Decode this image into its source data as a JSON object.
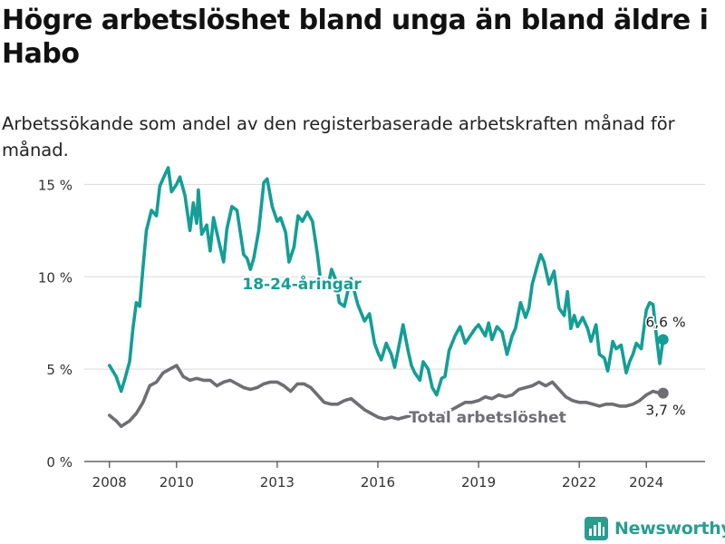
{
  "title": "Högre arbetslöshet bland unga än bland äldre i Habo",
  "subtitle": "Arbetssökande som andel av den registerbaserade arbetskraften månad för månad.",
  "brand": "Newsworthy",
  "chart_data": {
    "type": "line",
    "xlim": [
      2007.25,
      2025.75
    ],
    "ylim": [
      0,
      16
    ],
    "y_ticks": [
      {
        "value": 0,
        "label": "0 %"
      },
      {
        "value": 5,
        "label": "5 %"
      },
      {
        "value": 10,
        "label": "10 %"
      },
      {
        "value": 15,
        "label": "15 %"
      }
    ],
    "x_ticks": [
      {
        "value": 2008,
        "label": "2008"
      },
      {
        "value": 2010,
        "label": "2010"
      },
      {
        "value": 2013,
        "label": "2013"
      },
      {
        "value": 2016,
        "label": "2016"
      },
      {
        "value": 2019,
        "label": "2019"
      },
      {
        "value": 2022,
        "label": "2022"
      },
      {
        "value": 2024,
        "label": "2024"
      }
    ],
    "series": [
      {
        "name": "18-24-åringar",
        "color": "#139e96",
        "end_label": "6,6 %",
        "points": [
          [
            2008.0,
            5.2
          ],
          [
            2008.2,
            4.6
          ],
          [
            2008.35,
            3.8
          ],
          [
            2008.45,
            4.4
          ],
          [
            2008.6,
            5.4
          ],
          [
            2008.7,
            7.2
          ],
          [
            2008.8,
            8.6
          ],
          [
            2008.9,
            8.4
          ],
          [
            2009.0,
            10.5
          ],
          [
            2009.1,
            12.5
          ],
          [
            2009.25,
            13.6
          ],
          [
            2009.4,
            13.3
          ],
          [
            2009.5,
            14.9
          ],
          [
            2009.62,
            15.4
          ],
          [
            2009.75,
            15.9
          ],
          [
            2009.85,
            14.6
          ],
          [
            2010.0,
            15.0
          ],
          [
            2010.1,
            15.4
          ],
          [
            2010.25,
            14.4
          ],
          [
            2010.4,
            12.5
          ],
          [
            2010.5,
            14.0
          ],
          [
            2010.6,
            12.9
          ],
          [
            2010.65,
            14.7
          ],
          [
            2010.75,
            12.3
          ],
          [
            2010.9,
            12.8
          ],
          [
            2011.0,
            11.4
          ],
          [
            2011.1,
            13.2
          ],
          [
            2011.25,
            12.0
          ],
          [
            2011.4,
            10.8
          ],
          [
            2011.5,
            12.6
          ],
          [
            2011.65,
            13.8
          ],
          [
            2011.8,
            13.6
          ],
          [
            2011.9,
            12.4
          ],
          [
            2012.0,
            11.2
          ],
          [
            2012.1,
            11.0
          ],
          [
            2012.2,
            10.4
          ],
          [
            2012.3,
            11.0
          ],
          [
            2012.45,
            12.5
          ],
          [
            2012.6,
            15.1
          ],
          [
            2012.7,
            15.3
          ],
          [
            2012.85,
            13.8
          ],
          [
            2013.0,
            13.0
          ],
          [
            2013.1,
            13.2
          ],
          [
            2013.25,
            12.4
          ],
          [
            2013.35,
            10.8
          ],
          [
            2013.5,
            11.6
          ],
          [
            2013.62,
            13.3
          ],
          [
            2013.75,
            13.0
          ],
          [
            2013.9,
            13.5
          ],
          [
            2014.05,
            13.0
          ],
          [
            2014.2,
            11.2
          ],
          [
            2014.3,
            9.7
          ],
          [
            2014.5,
            9.4
          ],
          [
            2014.62,
            10.4
          ],
          [
            2014.75,
            9.8
          ],
          [
            2014.85,
            8.6
          ],
          [
            2015.0,
            8.4
          ],
          [
            2015.1,
            9.2
          ],
          [
            2015.2,
            9.9
          ],
          [
            2015.4,
            8.5
          ],
          [
            2015.6,
            7.6
          ],
          [
            2015.75,
            8.0
          ],
          [
            2015.9,
            6.4
          ],
          [
            2016.0,
            5.9
          ],
          [
            2016.1,
            5.5
          ],
          [
            2016.25,
            6.4
          ],
          [
            2016.4,
            5.8
          ],
          [
            2016.5,
            5.1
          ],
          [
            2016.6,
            6.0
          ],
          [
            2016.75,
            7.4
          ],
          [
            2016.9,
            6.0
          ],
          [
            2017.0,
            5.2
          ],
          [
            2017.1,
            4.8
          ],
          [
            2017.25,
            4.4
          ],
          [
            2017.35,
            5.4
          ],
          [
            2017.5,
            5.0
          ],
          [
            2017.62,
            4.0
          ],
          [
            2017.75,
            3.6
          ],
          [
            2017.9,
            4.5
          ],
          [
            2018.0,
            4.6
          ],
          [
            2018.12,
            6.0
          ],
          [
            2018.3,
            6.8
          ],
          [
            2018.45,
            7.3
          ],
          [
            2018.6,
            6.4
          ],
          [
            2018.75,
            6.8
          ],
          [
            2018.9,
            7.2
          ],
          [
            2019.0,
            7.4
          ],
          [
            2019.2,
            6.8
          ],
          [
            2019.3,
            7.5
          ],
          [
            2019.4,
            6.6
          ],
          [
            2019.55,
            7.3
          ],
          [
            2019.7,
            7.0
          ],
          [
            2019.85,
            5.8
          ],
          [
            2020.0,
            6.8
          ],
          [
            2020.1,
            7.2
          ],
          [
            2020.25,
            8.6
          ],
          [
            2020.4,
            7.8
          ],
          [
            2020.5,
            8.3
          ],
          [
            2020.6,
            9.6
          ],
          [
            2020.75,
            10.6
          ],
          [
            2020.85,
            11.2
          ],
          [
            2020.95,
            10.8
          ],
          [
            2021.1,
            9.6
          ],
          [
            2021.25,
            10.3
          ],
          [
            2021.4,
            8.3
          ],
          [
            2021.55,
            7.9
          ],
          [
            2021.65,
            9.2
          ],
          [
            2021.75,
            7.2
          ],
          [
            2021.85,
            7.9
          ],
          [
            2021.95,
            7.3
          ],
          [
            2022.1,
            7.8
          ],
          [
            2022.25,
            7.2
          ],
          [
            2022.35,
            6.5
          ],
          [
            2022.5,
            7.4
          ],
          [
            2022.6,
            5.8
          ],
          [
            2022.75,
            5.6
          ],
          [
            2022.85,
            4.9
          ],
          [
            2023.0,
            6.5
          ],
          [
            2023.1,
            6.1
          ],
          [
            2023.25,
            6.3
          ],
          [
            2023.4,
            4.8
          ],
          [
            2023.5,
            5.4
          ],
          [
            2023.6,
            5.8
          ],
          [
            2023.7,
            6.4
          ],
          [
            2023.85,
            6.1
          ],
          [
            2024.0,
            8.2
          ],
          [
            2024.1,
            8.6
          ],
          [
            2024.2,
            8.5
          ],
          [
            2024.3,
            6.8
          ],
          [
            2024.4,
            5.3
          ],
          [
            2024.5,
            6.6
          ]
        ]
      },
      {
        "name": "Total arbetslöshet",
        "color": "#6e6e73",
        "end_label": "3,7 %",
        "points": [
          [
            2008.0,
            2.5
          ],
          [
            2008.2,
            2.2
          ],
          [
            2008.35,
            1.9
          ],
          [
            2008.6,
            2.2
          ],
          [
            2008.8,
            2.6
          ],
          [
            2009.0,
            3.2
          ],
          [
            2009.2,
            4.1
          ],
          [
            2009.4,
            4.3
          ],
          [
            2009.6,
            4.8
          ],
          [
            2009.8,
            5.0
          ],
          [
            2010.0,
            5.2
          ],
          [
            2010.2,
            4.6
          ],
          [
            2010.4,
            4.4
          ],
          [
            2010.6,
            4.5
          ],
          [
            2010.8,
            4.4
          ],
          [
            2011.0,
            4.4
          ],
          [
            2011.2,
            4.1
          ],
          [
            2011.4,
            4.3
          ],
          [
            2011.6,
            4.4
          ],
          [
            2011.8,
            4.2
          ],
          [
            2012.0,
            4.0
          ],
          [
            2012.2,
            3.9
          ],
          [
            2012.4,
            4.0
          ],
          [
            2012.6,
            4.2
          ],
          [
            2012.8,
            4.3
          ],
          [
            2013.0,
            4.3
          ],
          [
            2013.2,
            4.1
          ],
          [
            2013.4,
            3.8
          ],
          [
            2013.6,
            4.2
          ],
          [
            2013.8,
            4.2
          ],
          [
            2014.0,
            4.0
          ],
          [
            2014.2,
            3.6
          ],
          [
            2014.4,
            3.2
          ],
          [
            2014.6,
            3.1
          ],
          [
            2014.8,
            3.1
          ],
          [
            2015.0,
            3.3
          ],
          [
            2015.2,
            3.4
          ],
          [
            2015.4,
            3.1
          ],
          [
            2015.6,
            2.8
          ],
          [
            2015.8,
            2.6
          ],
          [
            2016.0,
            2.4
          ],
          [
            2016.2,
            2.3
          ],
          [
            2016.4,
            2.4
          ],
          [
            2016.6,
            2.3
          ],
          [
            2016.8,
            2.4
          ],
          [
            2017.0,
            2.5
          ],
          [
            2017.2,
            2.3
          ],
          [
            2017.4,
            2.3
          ],
          [
            2017.6,
            2.4
          ],
          [
            2017.8,
            2.4
          ],
          [
            2018.0,
            2.6
          ],
          [
            2018.2,
            2.8
          ],
          [
            2018.4,
            3.0
          ],
          [
            2018.6,
            3.2
          ],
          [
            2018.8,
            3.2
          ],
          [
            2019.0,
            3.3
          ],
          [
            2019.2,
            3.5
          ],
          [
            2019.4,
            3.4
          ],
          [
            2019.6,
            3.6
          ],
          [
            2019.8,
            3.5
          ],
          [
            2020.0,
            3.6
          ],
          [
            2020.2,
            3.9
          ],
          [
            2020.4,
            4.0
          ],
          [
            2020.6,
            4.1
          ],
          [
            2020.8,
            4.3
          ],
          [
            2021.0,
            4.1
          ],
          [
            2021.2,
            4.3
          ],
          [
            2021.4,
            3.9
          ],
          [
            2021.6,
            3.5
          ],
          [
            2021.8,
            3.3
          ],
          [
            2022.0,
            3.2
          ],
          [
            2022.2,
            3.2
          ],
          [
            2022.4,
            3.1
          ],
          [
            2022.6,
            3.0
          ],
          [
            2022.8,
            3.1
          ],
          [
            2023.0,
            3.1
          ],
          [
            2023.2,
            3.0
          ],
          [
            2023.4,
            3.0
          ],
          [
            2023.6,
            3.1
          ],
          [
            2023.8,
            3.3
          ],
          [
            2024.0,
            3.6
          ],
          [
            2024.2,
            3.8
          ],
          [
            2024.4,
            3.7
          ],
          [
            2024.5,
            3.7
          ]
        ]
      }
    ],
    "annotations": [
      {
        "text": "18-24-åringar",
        "series": 0
      },
      {
        "text": "Total arbetslöshet",
        "series": 1
      }
    ]
  }
}
